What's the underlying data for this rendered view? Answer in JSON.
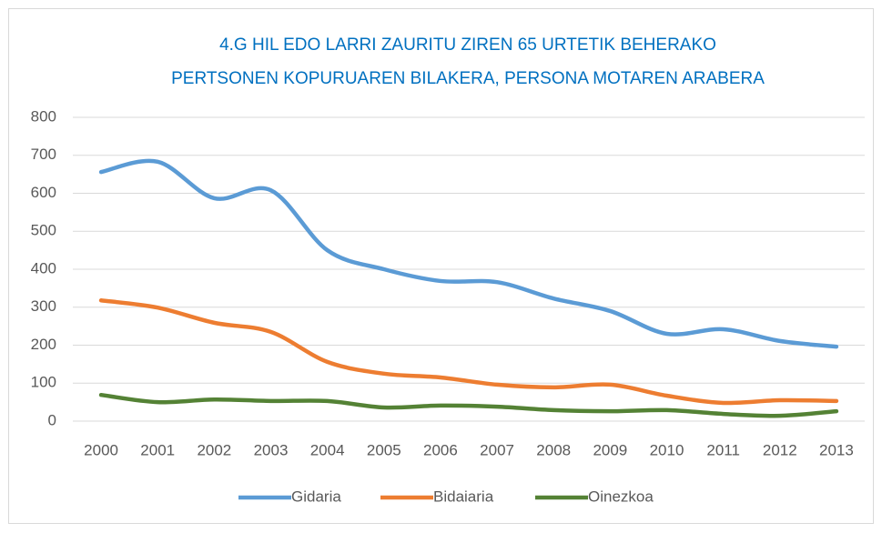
{
  "chart_data": {
    "type": "line",
    "title": [
      "4.G  HIL EDO LARRI ZAURITU ZIREN 65 URTETIK BEHERAKO",
      "PERTSONEN KOPURUAREN BILAKERA, PERSONA MOTAREN ARABERA"
    ],
    "categories": [
      "2000",
      "2001",
      "2002",
      "2003",
      "2004",
      "2005",
      "2006",
      "2007",
      "2008",
      "2009",
      "2010",
      "2011",
      "2012",
      "2013"
    ],
    "series": [
      {
        "name": "Gidaria",
        "color": "#5b9bd5",
        "values": [
          656,
          683,
          587,
          608,
          450,
          400,
          369,
          366,
          323,
          290,
          230,
          242,
          211,
          196
        ]
      },
      {
        "name": "Bidaiaria",
        "color": "#ed7d31",
        "values": [
          318,
          299,
          259,
          235,
          156,
          125,
          115,
          96,
          89,
          96,
          67,
          48,
          55,
          53
        ]
      },
      {
        "name": "Oinezkoa",
        "color": "#548235",
        "values": [
          69,
          50,
          57,
          53,
          53,
          36,
          41,
          38,
          29,
          26,
          29,
          19,
          14,
          26
        ]
      }
    ],
    "ylim": [
      0,
      800
    ],
    "yticks": [
      0,
      100,
      200,
      300,
      400,
      500,
      600,
      700,
      800
    ],
    "grid": true,
    "smooth": true,
    "legend": "bottom"
  }
}
